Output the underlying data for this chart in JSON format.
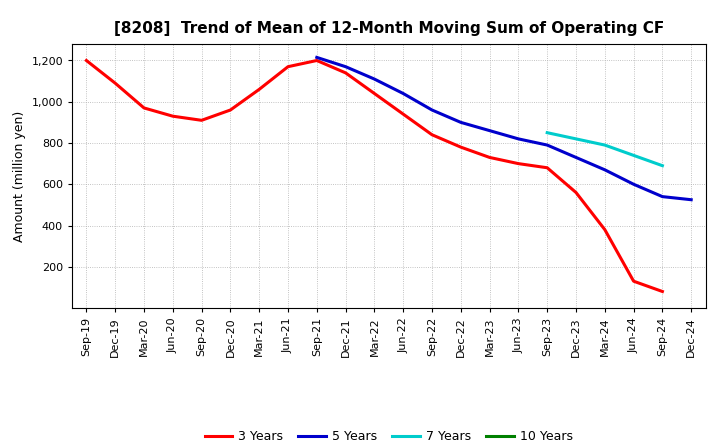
{
  "title": "[8208]  Trend of Mean of 12-Month Moving Sum of Operating CF",
  "ylabel": "Amount (million yen)",
  "background_color": "#ffffff",
  "grid_color": "#b0b0b0",
  "yticks": [
    200,
    400,
    600,
    800,
    1000,
    1200
  ],
  "ylim": [
    0,
    1280
  ],
  "series": {
    "3years": {
      "color": "#ff0000",
      "label": "3 Years",
      "x": [
        "Sep-19",
        "Dec-19",
        "Mar-20",
        "Jun-20",
        "Sep-20",
        "Dec-20",
        "Mar-21",
        "Jun-21",
        "Sep-21",
        "Dec-21",
        "Mar-22",
        "Jun-22",
        "Sep-22",
        "Dec-22",
        "Mar-23",
        "Jun-23",
        "Sep-23",
        "Dec-23",
        "Mar-24",
        "Jun-24",
        "Sep-24"
      ],
      "y": [
        1200,
        1090,
        970,
        930,
        910,
        960,
        1060,
        1170,
        1200,
        1140,
        1040,
        940,
        840,
        780,
        730,
        700,
        680,
        560,
        380,
        130,
        80
      ]
    },
    "5years": {
      "color": "#0000cc",
      "label": "5 Years",
      "x": [
        "Sep-21",
        "Dec-21",
        "Mar-22",
        "Jun-22",
        "Sep-22",
        "Dec-22",
        "Mar-23",
        "Jun-23",
        "Sep-23",
        "Dec-23",
        "Mar-24",
        "Jun-24",
        "Sep-24",
        "Dec-24"
      ],
      "y": [
        1215,
        1170,
        1110,
        1040,
        960,
        900,
        860,
        820,
        790,
        730,
        670,
        600,
        540,
        525
      ]
    },
    "7years": {
      "color": "#00cccc",
      "label": "7 Years",
      "x": [
        "Sep-23",
        "Dec-23",
        "Mar-24",
        "Jun-24",
        "Sep-24"
      ],
      "y": [
        850,
        820,
        790,
        740,
        690
      ]
    },
    "10years": {
      "color": "#008000",
      "label": "10 Years",
      "x": [],
      "y": []
    }
  },
  "xticks": [
    "Sep-19",
    "Dec-19",
    "Mar-20",
    "Jun-20",
    "Sep-20",
    "Dec-20",
    "Mar-21",
    "Jun-21",
    "Sep-21",
    "Dec-21",
    "Mar-22",
    "Jun-22",
    "Sep-22",
    "Dec-22",
    "Mar-23",
    "Jun-23",
    "Sep-23",
    "Dec-23",
    "Mar-24",
    "Jun-24",
    "Sep-24",
    "Dec-24"
  ],
  "linewidth": 2.2,
  "title_fontsize": 11,
  "ylabel_fontsize": 9,
  "tick_fontsize": 8,
  "legend_fontsize": 9
}
